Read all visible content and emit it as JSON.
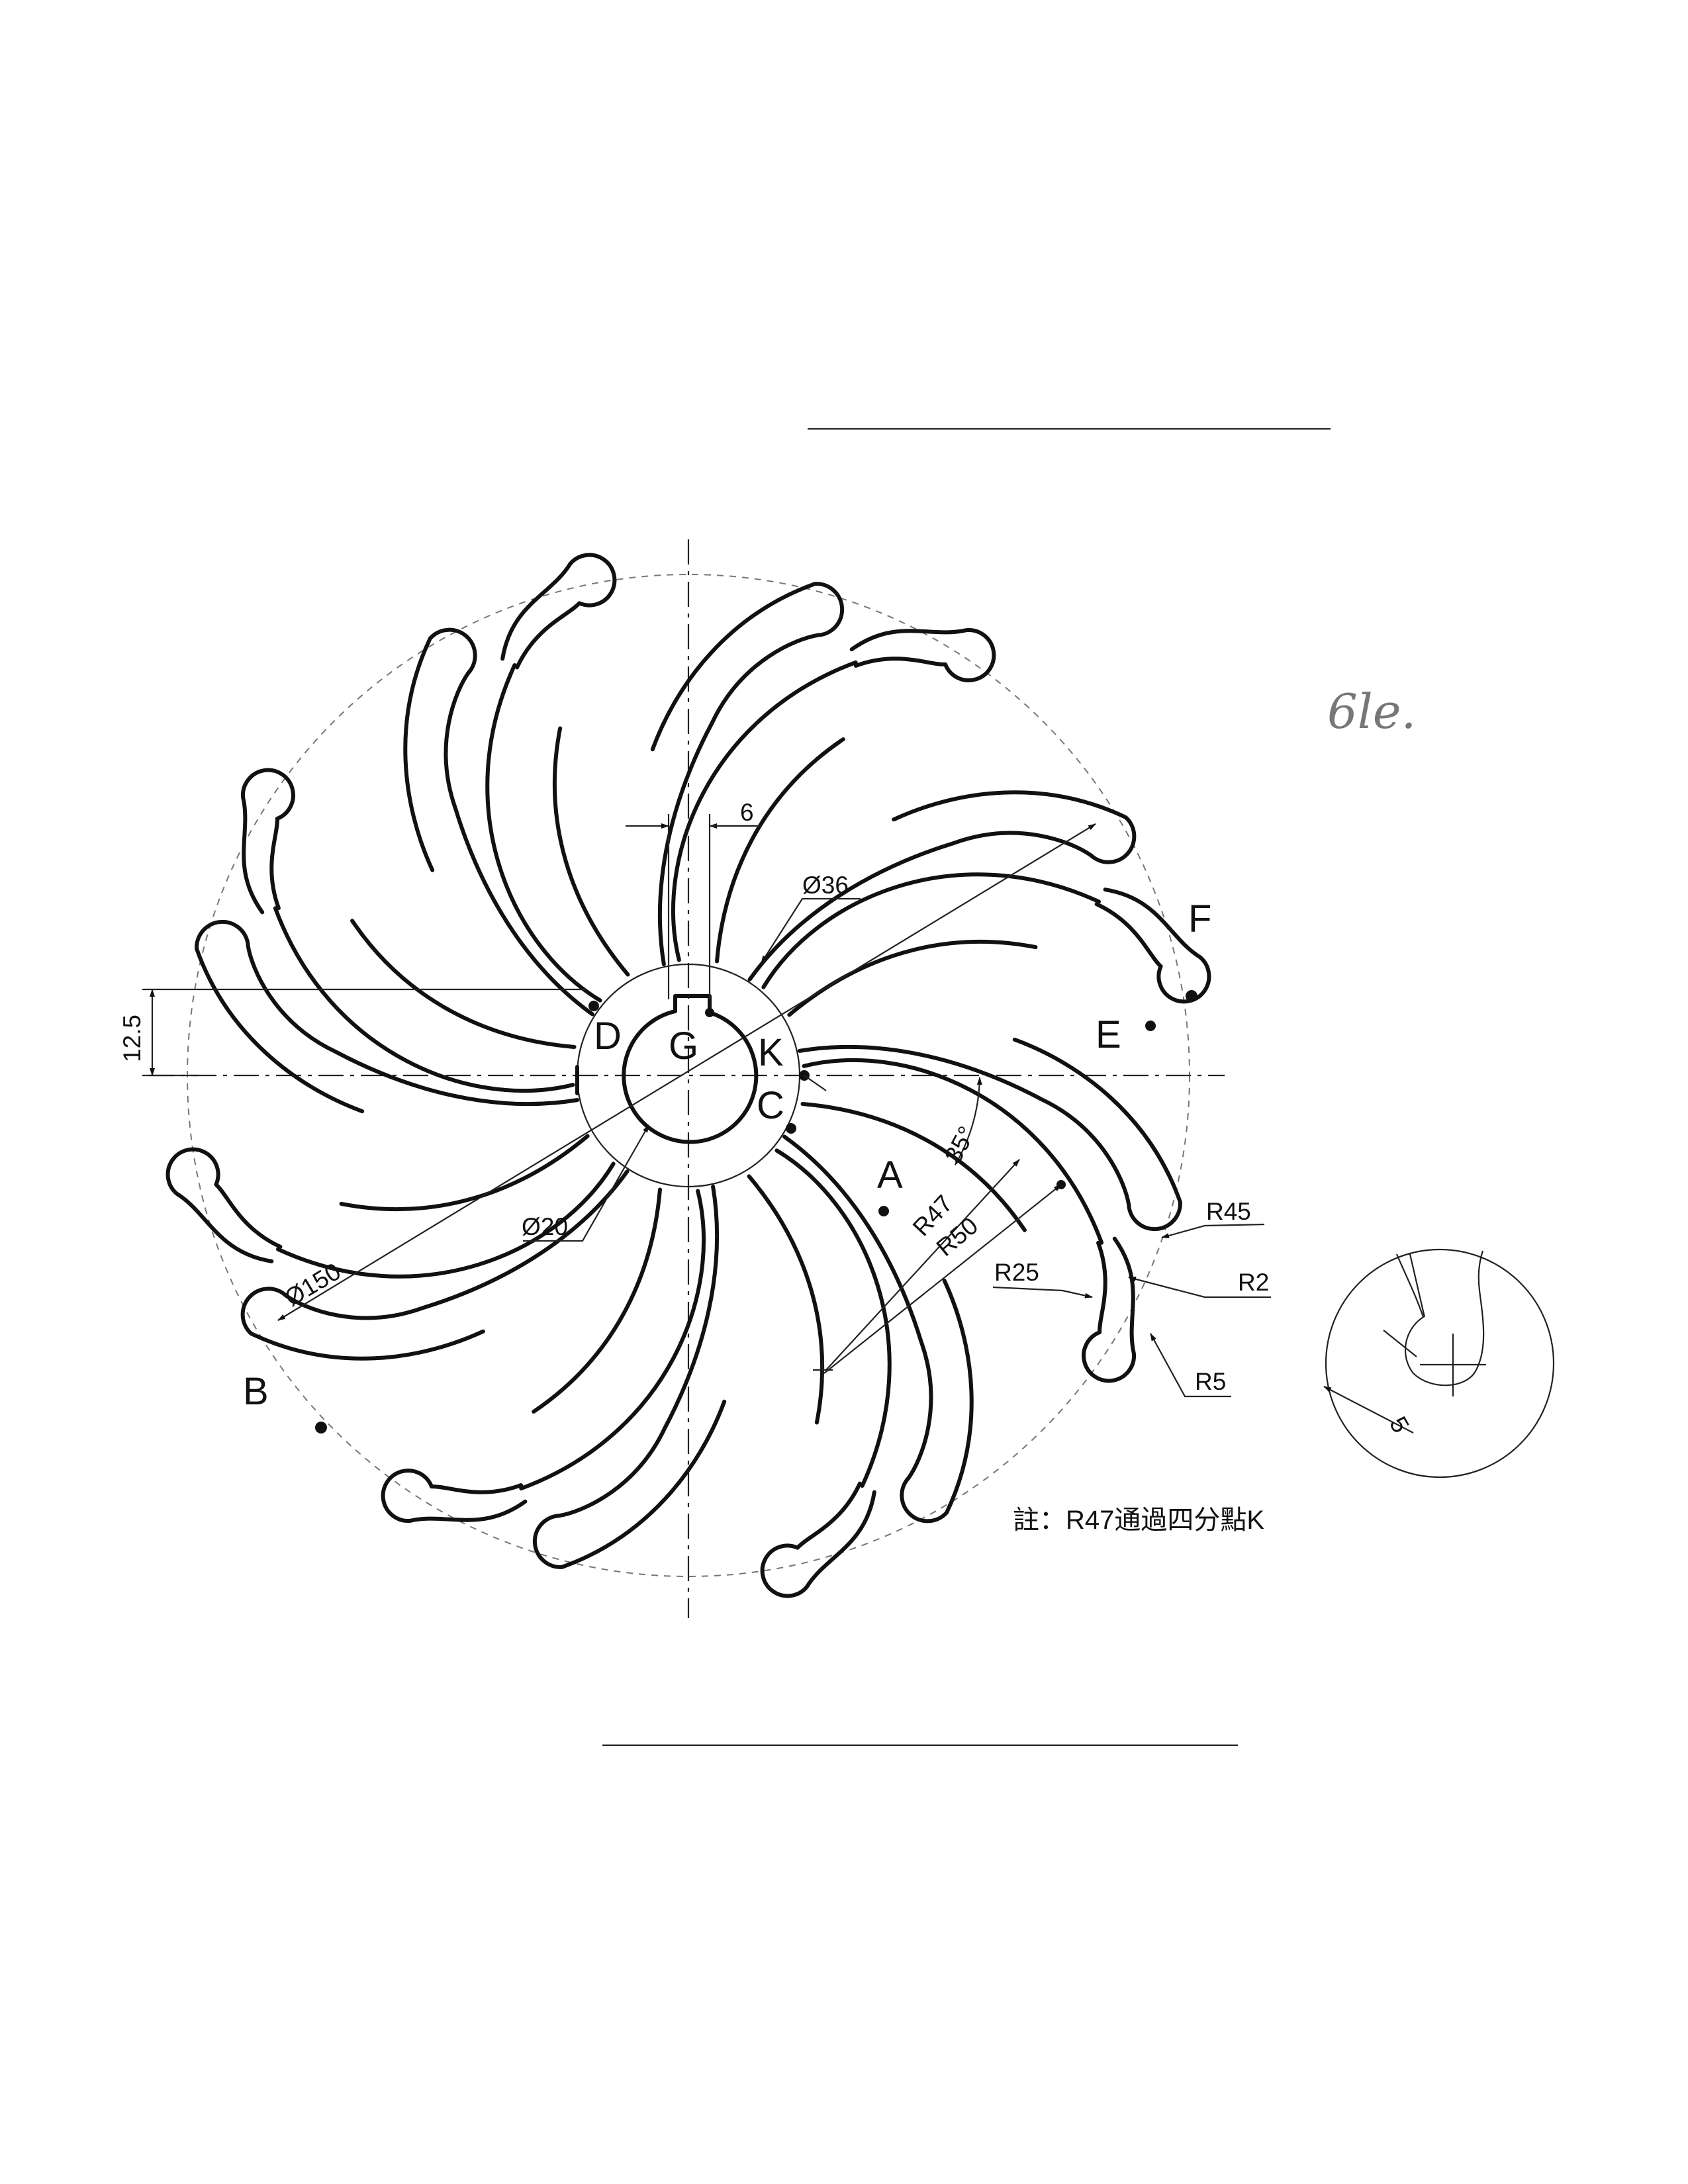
{
  "points": {
    "A": "A",
    "B": "B",
    "C": "C",
    "D": "D",
    "E": "E",
    "F": "F",
    "G": "G",
    "K": "K"
  },
  "dimensions": {
    "keyway_width": "6",
    "hub_diameter": "Ø36",
    "bore_diameter": "Ø20",
    "outer_diameter": "Ø150",
    "key_offset": "12.5",
    "angle": "35°",
    "r47": "R47",
    "r50": "R50",
    "r25": "R25",
    "r45": "R45",
    "r2": "R2",
    "r5": "R5",
    "detail_dim": "5"
  },
  "note": "註：R47通過四分點K",
  "handwriting": "6le."
}
